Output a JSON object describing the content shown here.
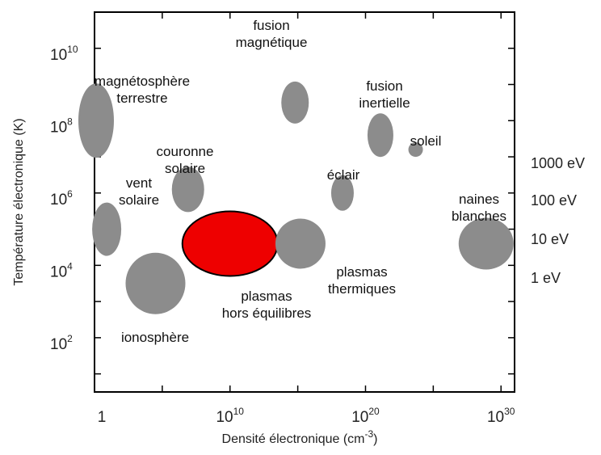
{
  "chart_data": {
    "type": "scatter",
    "title": "",
    "xlabel": {
      "text": "Densité électronique (cm",
      "sup": "-3",
      "suffix": ")"
    },
    "ylabel": "Température électronique (K)",
    "x_scale": "log10",
    "y_scale": "log10",
    "xlim_exp": [
      0,
      31
    ],
    "ylim_exp": [
      0.5,
      11
    ],
    "x_ticks": [
      {
        "base": "1",
        "exp": ""
      },
      {
        "base": "10",
        "exp": "10"
      },
      {
        "base": "10",
        "exp": "20"
      },
      {
        "base": "10",
        "exp": "30"
      }
    ],
    "y_ticks": [
      {
        "base": "10",
        "exp": "2"
      },
      {
        "base": "10",
        "exp": "4"
      },
      {
        "base": "10",
        "exp": "6"
      },
      {
        "base": "10",
        "exp": "8"
      },
      {
        "base": "10",
        "exp": "10"
      }
    ],
    "ev_labels": [
      "1000 eV",
      "100 eV",
      "10 eV",
      "1 eV"
    ],
    "colors": {
      "region": "#8c8c8c",
      "highlight": "#ee0000",
      "frame": "#000000"
    },
    "regions": [
      {
        "name": "magnétosphère terrestre",
        "lines": [
          "magnétosphère",
          "terrestre"
        ],
        "x": 0.2,
        "y": 8.0,
        "highlight": false
      },
      {
        "name": "vent solaire",
        "lines": [
          "vent",
          "solaire"
        ],
        "x": 0.9,
        "y": 5.0,
        "highlight": false
      },
      {
        "name": "couronne solaire",
        "lines": [
          "couronne",
          "solaire"
        ],
        "x": 6.9,
        "y": 6.1,
        "highlight": false
      },
      {
        "name": "ionosphère",
        "lines": [
          "ionosphère"
        ],
        "x": 4.5,
        "y": 3.5,
        "highlight": false
      },
      {
        "name": "plasmas hors équilibres",
        "lines": [
          "plasmas",
          "hors équilibres"
        ],
        "x": 10.0,
        "y": 4.6,
        "highlight": true
      },
      {
        "name": "fusion magnétique",
        "lines": [
          "fusion",
          "magnétique"
        ],
        "x": 14.8,
        "y": 8.5,
        "highlight": false
      },
      {
        "name": "plasmas thermiques",
        "lines": [
          "plasmas",
          "thermiques"
        ],
        "x": 15.2,
        "y": 4.6,
        "highlight": false
      },
      {
        "name": "éclair",
        "lines": [
          "éclair"
        ],
        "x": 18.3,
        "y": 6.0,
        "highlight": false
      },
      {
        "name": "fusion inertielle",
        "lines": [
          "fusion",
          "inertielle"
        ],
        "x": 21.1,
        "y": 7.6,
        "highlight": false
      },
      {
        "name": "soleil",
        "lines": [
          "soleil"
        ],
        "x": 23.7,
        "y": 7.2,
        "highlight": false
      },
      {
        "name": "naines blanches",
        "lines": [
          "naines",
          "blanches"
        ],
        "x": 28.9,
        "y": 4.6,
        "highlight": false
      }
    ]
  }
}
